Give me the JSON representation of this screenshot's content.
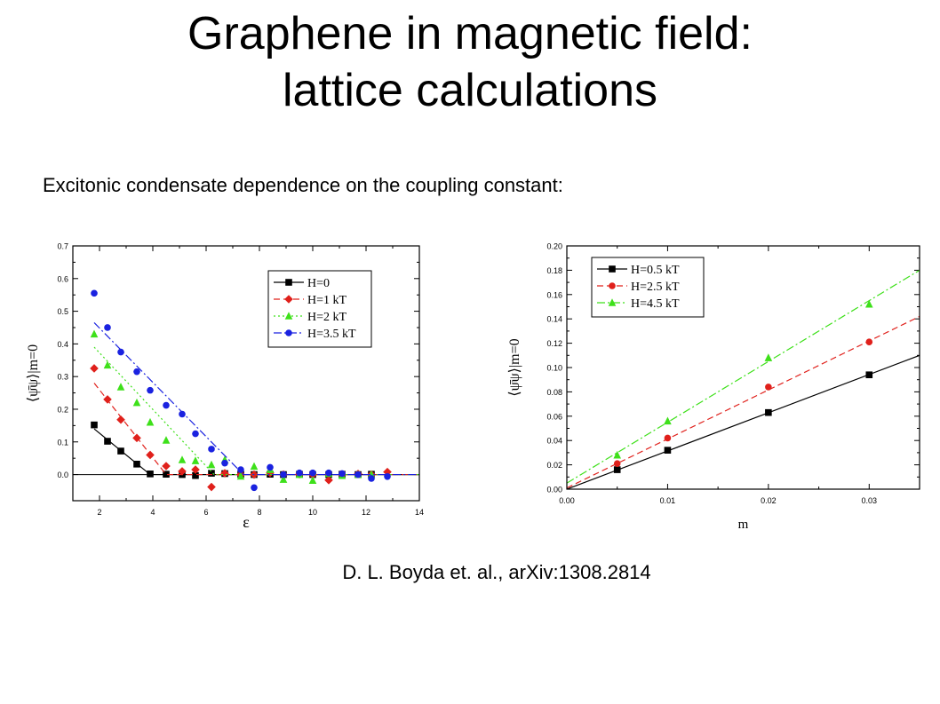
{
  "slide": {
    "title_line1": "Graphene in magnetic field:",
    "title_line2": "lattice calculations",
    "subtitle": "Excitonic condensate dependence on the coupling constant:",
    "citation": "D. L. Boyda et. al., arXiv:1308.2814"
  },
  "chart_data": [
    {
      "type": "line",
      "xlabel": "ε",
      "ylabel": "⟨ψ̄ψ⟩|m=0",
      "xlim": [
        1,
        14
      ],
      "ylim": [
        -0.08,
        0.7
      ],
      "xticks": [
        2,
        4,
        6,
        8,
        10,
        12,
        14
      ],
      "yticks": [
        0.0,
        0.1,
        0.2,
        0.3,
        0.4,
        0.5,
        0.6,
        0.7
      ],
      "ytick_labels": [
        "0.0",
        "0.1",
        "0.2",
        "0.3",
        "0.4",
        "0.5",
        "0.6",
        "0.7"
      ],
      "legend_position": "upper-right",
      "series": [
        {
          "name": "H=0",
          "color": "#000000",
          "marker": "square",
          "dash": "",
          "points": [
            [
              1.8,
              0.152
            ],
            [
              2.3,
              0.102
            ],
            [
              2.8,
              0.072
            ],
            [
              3.4,
              0.032
            ],
            [
              3.9,
              0.002
            ],
            [
              4.5,
              0.001
            ],
            [
              5.1,
              0.0
            ],
            [
              5.6,
              -0.003
            ],
            [
              6.2,
              0.004
            ],
            [
              6.7,
              0.003
            ],
            [
              7.3,
              0.001
            ],
            [
              7.8,
              0.0
            ],
            [
              8.4,
              0.001
            ],
            [
              8.9,
              0.0
            ],
            [
              9.5,
              0.001
            ],
            [
              10.0,
              0.0
            ],
            [
              10.6,
              0.0
            ],
            [
              11.1,
              0.001
            ],
            [
              11.7,
              0.0
            ],
            [
              12.2,
              0.001
            ]
          ],
          "fit": [
            [
              1.8,
              0.14
            ],
            [
              3.9,
              0.0
            ],
            [
              14,
              0.0
            ]
          ]
        },
        {
          "name": "H=1 kT",
          "color": "#e0201b",
          "marker": "diamond",
          "dash": "7,4",
          "points": [
            [
              1.8,
              0.325
            ],
            [
              2.3,
              0.23
            ],
            [
              2.8,
              0.168
            ],
            [
              3.4,
              0.112
            ],
            [
              3.9,
              0.06
            ],
            [
              4.5,
              0.026
            ],
            [
              5.1,
              0.01
            ],
            [
              5.6,
              0.015
            ],
            [
              6.2,
              -0.038
            ],
            [
              6.7,
              0.004
            ],
            [
              7.3,
              0.0
            ],
            [
              7.8,
              0.0
            ],
            [
              8.4,
              0.005
            ],
            [
              8.9,
              0.0
            ],
            [
              9.5,
              0.001
            ],
            [
              10.0,
              0.0
            ],
            [
              10.6,
              -0.017
            ],
            [
              11.1,
              0.0
            ],
            [
              11.7,
              0.002
            ],
            [
              12.2,
              0.0
            ],
            [
              12.8,
              0.008
            ]
          ],
          "fit": [
            [
              1.8,
              0.28
            ],
            [
              4.5,
              0.0
            ],
            [
              14,
              0.0
            ]
          ]
        },
        {
          "name": "H=2 kT",
          "color": "#3ee01a",
          "marker": "triangle",
          "dash": "2,3",
          "points": [
            [
              1.8,
              0.43
            ],
            [
              2.3,
              0.335
            ],
            [
              2.8,
              0.268
            ],
            [
              3.4,
              0.22
            ],
            [
              3.9,
              0.16
            ],
            [
              4.5,
              0.105
            ],
            [
              5.1,
              0.045
            ],
            [
              5.6,
              0.042
            ],
            [
              6.2,
              0.03
            ],
            [
              6.7,
              0.045
            ],
            [
              7.3,
              -0.005
            ],
            [
              7.8,
              0.025
            ],
            [
              8.4,
              0.015
            ],
            [
              8.9,
              -0.015
            ],
            [
              9.5,
              0.0
            ],
            [
              10.0,
              -0.018
            ],
            [
              10.6,
              0.003
            ],
            [
              11.1,
              -0.003
            ],
            [
              11.7,
              0.0
            ],
            [
              12.2,
              0.0
            ]
          ],
          "fit": [
            [
              1.8,
              0.39
            ],
            [
              6.3,
              0.0
            ],
            [
              14,
              0.0
            ]
          ]
        },
        {
          "name": "H=3.5 kT",
          "color": "#1a22e0",
          "marker": "circle",
          "dash": "9,3,2,3",
          "points": [
            [
              1.8,
              0.555
            ],
            [
              2.3,
              0.45
            ],
            [
              2.8,
              0.375
            ],
            [
              3.4,
              0.315
            ],
            [
              3.9,
              0.258
            ],
            [
              4.5,
              0.212
            ],
            [
              5.1,
              0.185
            ],
            [
              5.6,
              0.125
            ],
            [
              6.2,
              0.078
            ],
            [
              6.7,
              0.035
            ],
            [
              7.3,
              0.015
            ],
            [
              7.8,
              -0.04
            ],
            [
              8.4,
              0.022
            ],
            [
              8.9,
              0.0
            ],
            [
              9.5,
              0.005
            ],
            [
              10.0,
              0.005
            ],
            [
              10.6,
              0.005
            ],
            [
              11.1,
              0.003
            ],
            [
              11.7,
              0.0
            ],
            [
              12.2,
              -0.012
            ],
            [
              12.8,
              -0.006
            ]
          ],
          "fit": [
            [
              1.8,
              0.465
            ],
            [
              7.4,
              0.0
            ],
            [
              14,
              0.0
            ]
          ]
        }
      ]
    },
    {
      "type": "line",
      "xlabel": "m",
      "ylabel": "⟨ψ̄ψ⟩|m=0",
      "xlim": [
        0.0,
        0.035
      ],
      "ylim": [
        0.0,
        0.2
      ],
      "xticks": [
        0.0,
        0.01,
        0.02,
        0.03
      ],
      "xtick_labels": [
        "0.00",
        "0.01",
        "0.02",
        "0.03"
      ],
      "yticks": [
        0.0,
        0.02,
        0.04,
        0.06,
        0.08,
        0.1,
        0.12,
        0.14,
        0.16,
        0.18,
        0.2
      ],
      "ytick_labels": [
        "0.00",
        "0.02",
        "0.04",
        "0.06",
        "0.08",
        "0.10",
        "0.12",
        "0.14",
        "0.16",
        "0.18",
        "0.20"
      ],
      "legend_position": "upper-left",
      "series": [
        {
          "name": "H=0.5 kT",
          "color": "#000000",
          "marker": "square",
          "dash": "",
          "points": [
            [
              0.005,
              0.016
            ],
            [
              0.01,
              0.032
            ],
            [
              0.02,
              0.063
            ],
            [
              0.03,
              0.094
            ]
          ],
          "fit": [
            [
              0.0,
              0.0
            ],
            [
              0.035,
              0.11
            ]
          ]
        },
        {
          "name": "H=2.5 kT",
          "color": "#e0201b",
          "marker": "circle",
          "dash": "7,4",
          "points": [
            [
              0.005,
              0.021
            ],
            [
              0.01,
              0.042
            ],
            [
              0.02,
              0.084
            ],
            [
              0.03,
              0.121
            ]
          ],
          "fit": [
            [
              0.0,
              0.001
            ],
            [
              0.035,
              0.142
            ]
          ]
        },
        {
          "name": "H=4.5 kT",
          "color": "#3ee01a",
          "marker": "triangle",
          "dash": "9,3,2,3",
          "points": [
            [
              0.005,
              0.028
            ],
            [
              0.01,
              0.056
            ],
            [
              0.02,
              0.108
            ],
            [
              0.03,
              0.152
            ]
          ],
          "fit": [
            [
              0.0,
              0.005
            ],
            [
              0.035,
              0.18
            ]
          ]
        }
      ]
    }
  ]
}
